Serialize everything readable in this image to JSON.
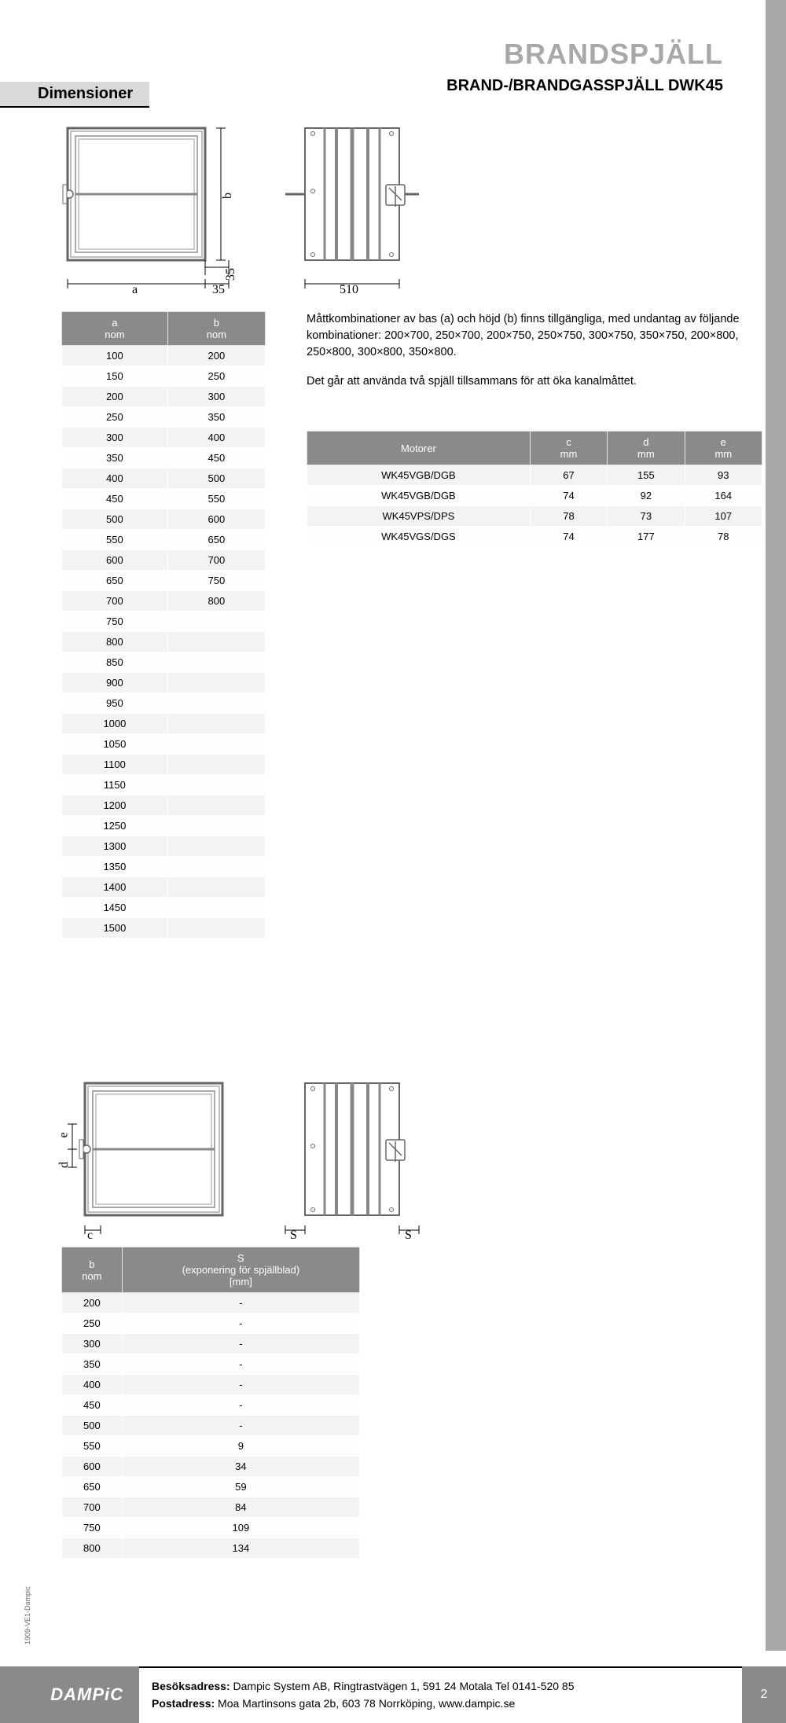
{
  "header": {
    "dim_tab": "Dimensioner",
    "title": "BRANDSPJÄLL",
    "subtitle": "BRAND-/BRANDGASSPJÄLL DWK45"
  },
  "diagram1": {
    "labels": {
      "a": "a",
      "b": "b",
      "col35": "35",
      "row35": "35",
      "side": "510"
    }
  },
  "diagram2": {
    "labels": {
      "c": "c",
      "d": "d",
      "e": "e",
      "S1": "S",
      "S2": "S"
    }
  },
  "table1": {
    "headers": [
      "a\nnom",
      "b\nnom"
    ],
    "rows": [
      [
        "100",
        "200"
      ],
      [
        "150",
        "250"
      ],
      [
        "200",
        "300"
      ],
      [
        "250",
        "350"
      ],
      [
        "300",
        "400"
      ],
      [
        "350",
        "450"
      ],
      [
        "400",
        "500"
      ],
      [
        "450",
        "550"
      ],
      [
        "500",
        "600"
      ],
      [
        "550",
        "650"
      ],
      [
        "600",
        "700"
      ],
      [
        "650",
        "750"
      ],
      [
        "700",
        "800"
      ],
      [
        "750",
        ""
      ],
      [
        "800",
        ""
      ],
      [
        "850",
        ""
      ],
      [
        "900",
        ""
      ],
      [
        "950",
        ""
      ],
      [
        "1000",
        ""
      ],
      [
        "1050",
        ""
      ],
      [
        "1100",
        ""
      ],
      [
        "1150",
        ""
      ],
      [
        "1200",
        ""
      ],
      [
        "1250",
        ""
      ],
      [
        "1300",
        ""
      ],
      [
        "1350",
        ""
      ],
      [
        "1400",
        ""
      ],
      [
        "1450",
        ""
      ],
      [
        "1500",
        ""
      ]
    ]
  },
  "text1": "Måttkombinationer av bas (a) och höjd (b) finns tillgängliga, med undantag av följande kombinationer: 200×700, 250×700, 200×750, 250×750, 300×750, 350×750, 200×800, 250×800, 300×800, 350×800.",
  "text2": "Det går att använda två spjäll tillsammans för att öka kanalmåttet.",
  "table2": {
    "headers": [
      "Motorer",
      "c\nmm",
      "d\nmm",
      "e\nmm"
    ],
    "rows": [
      [
        "WK45VGB/DGB",
        "67",
        "155",
        "93"
      ],
      [
        "WK45VGB/DGB",
        "74",
        "92",
        "164"
      ],
      [
        "WK45VPS/DPS",
        "78",
        "73",
        "107"
      ],
      [
        "WK45VGS/DGS",
        "74",
        "177",
        "78"
      ]
    ]
  },
  "table3": {
    "headers": [
      "b\nnom",
      "S\n(exponering för spjällblad)\n[mm]"
    ],
    "rows": [
      [
        "200",
        "-"
      ],
      [
        "250",
        "-"
      ],
      [
        "300",
        "-"
      ],
      [
        "350",
        "-"
      ],
      [
        "400",
        "-"
      ],
      [
        "450",
        "-"
      ],
      [
        "500",
        "-"
      ],
      [
        "550",
        "9"
      ],
      [
        "600",
        "34"
      ],
      [
        "650",
        "59"
      ],
      [
        "700",
        "84"
      ],
      [
        "750",
        "109"
      ],
      [
        "800",
        "134"
      ]
    ]
  },
  "footer": {
    "logo": "DAMPiC",
    "line1_label": "Besöksadress:",
    "line1": " Dampic System AB, Ringtrastvägen 1,  591 24 Motala  Tel 0141-520 85",
    "line2_label": "Postadress:",
    "line2": " Moa Martinsons gata 2b, 603 78 Norrköping, www.dampic.se",
    "page": "2"
  },
  "side_code": "1909-VE1-Dampic",
  "styles": {
    "header_bg": "#8a8a8a",
    "row_odd": "#f3f3f3",
    "row_even": "#fefefe",
    "right_band": "#a8a8a8",
    "title_color": "#a8a8a8"
  }
}
